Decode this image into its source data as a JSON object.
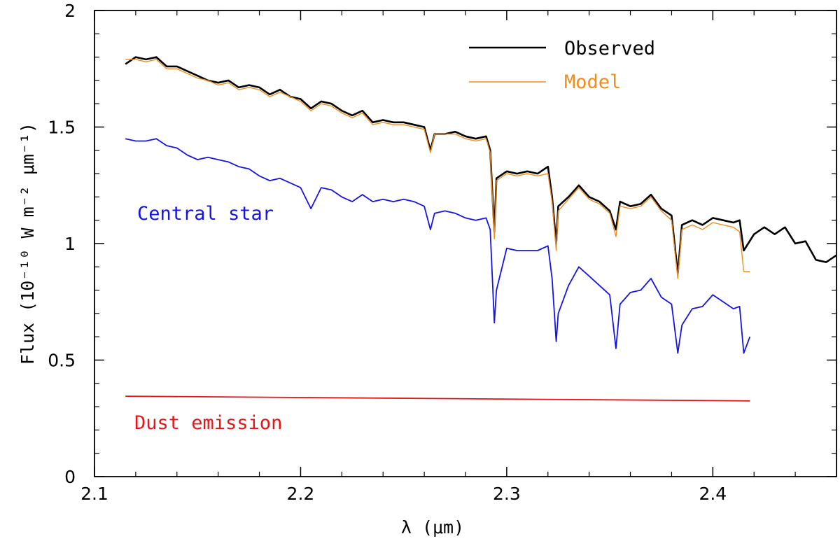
{
  "chart_data": {
    "type": "line",
    "xlabel": "λ (μm)",
    "ylabel": "Flux (10⁻¹⁰ W m⁻² μm⁻¹)",
    "xlim": [
      2.1,
      2.46
    ],
    "ylim": [
      0,
      2
    ],
    "x_ticks": [
      "2.1",
      "2.2",
      "2.3",
      "2.4"
    ],
    "y_ticks": [
      "0",
      "0.5",
      "1",
      "1.5",
      "2"
    ],
    "grid": false,
    "legend_position": "top-right",
    "colors": {
      "observed": "#000000",
      "model": "#f28c1c",
      "central_star": "#1414e6",
      "dust": "#e61414"
    },
    "series": [
      {
        "key": "observed",
        "name": "Observed",
        "x": [
          2.115,
          2.12,
          2.125,
          2.13,
          2.135,
          2.14,
          2.145,
          2.15,
          2.155,
          2.16,
          2.165,
          2.17,
          2.175,
          2.18,
          2.185,
          2.19,
          2.195,
          2.2,
          2.205,
          2.21,
          2.215,
          2.22,
          2.225,
          2.23,
          2.235,
          2.24,
          2.245,
          2.25,
          2.255,
          2.26,
          2.263,
          2.265,
          2.27,
          2.275,
          2.28,
          2.285,
          2.29,
          2.292,
          2.294,
          2.295,
          2.3,
          2.305,
          2.31,
          2.315,
          2.32,
          2.322,
          2.324,
          2.325,
          2.33,
          2.335,
          2.34,
          2.345,
          2.35,
          2.353,
          2.355,
          2.36,
          2.365,
          2.37,
          2.375,
          2.38,
          2.383,
          2.385,
          2.39,
          2.395,
          2.4,
          2.405,
          2.41,
          2.413,
          2.415,
          2.42,
          2.425,
          2.43,
          2.435,
          2.44,
          2.445,
          2.45,
          2.455,
          2.46
        ],
        "y": [
          1.77,
          1.8,
          1.79,
          1.8,
          1.76,
          1.76,
          1.74,
          1.72,
          1.7,
          1.69,
          1.7,
          1.67,
          1.68,
          1.67,
          1.64,
          1.66,
          1.63,
          1.62,
          1.58,
          1.61,
          1.6,
          1.57,
          1.55,
          1.57,
          1.52,
          1.53,
          1.52,
          1.52,
          1.51,
          1.5,
          1.4,
          1.47,
          1.47,
          1.48,
          1.46,
          1.45,
          1.46,
          1.4,
          1.05,
          1.28,
          1.31,
          1.3,
          1.31,
          1.3,
          1.33,
          1.2,
          1.0,
          1.16,
          1.2,
          1.25,
          1.2,
          1.18,
          1.14,
          1.06,
          1.18,
          1.16,
          1.17,
          1.21,
          1.15,
          1.12,
          0.87,
          1.08,
          1.1,
          1.08,
          1.11,
          1.1,
          1.09,
          1.1,
          0.97,
          1.04,
          1.07,
          1.04,
          1.07,
          1.0,
          1.01,
          0.93,
          0.92,
          0.95
        ]
      },
      {
        "key": "model",
        "name": "Model",
        "x": [
          2.115,
          2.12,
          2.125,
          2.13,
          2.135,
          2.14,
          2.145,
          2.15,
          2.155,
          2.16,
          2.165,
          2.17,
          2.175,
          2.18,
          2.185,
          2.19,
          2.195,
          2.2,
          2.205,
          2.21,
          2.215,
          2.22,
          2.225,
          2.23,
          2.235,
          2.24,
          2.245,
          2.25,
          2.255,
          2.26,
          2.263,
          2.265,
          2.27,
          2.275,
          2.28,
          2.285,
          2.29,
          2.292,
          2.294,
          2.295,
          2.3,
          2.305,
          2.31,
          2.315,
          2.32,
          2.322,
          2.324,
          2.325,
          2.33,
          2.335,
          2.34,
          2.345,
          2.35,
          2.353,
          2.355,
          2.36,
          2.365,
          2.37,
          2.375,
          2.38,
          2.383,
          2.385,
          2.39,
          2.395,
          2.4,
          2.405,
          2.41,
          2.413,
          2.415,
          2.418
        ],
        "y": [
          1.79,
          1.79,
          1.78,
          1.79,
          1.75,
          1.75,
          1.73,
          1.71,
          1.7,
          1.68,
          1.69,
          1.66,
          1.67,
          1.66,
          1.63,
          1.65,
          1.63,
          1.61,
          1.57,
          1.6,
          1.59,
          1.56,
          1.54,
          1.56,
          1.51,
          1.52,
          1.51,
          1.51,
          1.5,
          1.49,
          1.39,
          1.47,
          1.47,
          1.47,
          1.45,
          1.44,
          1.45,
          1.39,
          1.02,
          1.27,
          1.3,
          1.29,
          1.3,
          1.29,
          1.3,
          1.18,
          0.97,
          1.14,
          1.19,
          1.24,
          1.19,
          1.17,
          1.13,
          1.03,
          1.16,
          1.15,
          1.16,
          1.2,
          1.14,
          1.1,
          0.85,
          1.06,
          1.08,
          1.06,
          1.09,
          1.08,
          1.07,
          1.05,
          0.88,
          0.88
        ]
      },
      {
        "key": "central_star",
        "name": "Central star",
        "x": [
          2.115,
          2.12,
          2.125,
          2.13,
          2.135,
          2.14,
          2.145,
          2.15,
          2.155,
          2.16,
          2.165,
          2.17,
          2.175,
          2.18,
          2.185,
          2.19,
          2.195,
          2.2,
          2.205,
          2.21,
          2.215,
          2.22,
          2.225,
          2.23,
          2.235,
          2.24,
          2.245,
          2.25,
          2.255,
          2.26,
          2.263,
          2.265,
          2.27,
          2.275,
          2.28,
          2.285,
          2.29,
          2.292,
          2.294,
          2.295,
          2.3,
          2.305,
          2.31,
          2.315,
          2.32,
          2.322,
          2.324,
          2.325,
          2.33,
          2.335,
          2.34,
          2.345,
          2.35,
          2.353,
          2.355,
          2.36,
          2.365,
          2.37,
          2.375,
          2.38,
          2.383,
          2.385,
          2.39,
          2.395,
          2.4,
          2.405,
          2.41,
          2.413,
          2.415,
          2.418
        ],
        "y": [
          1.45,
          1.44,
          1.44,
          1.45,
          1.42,
          1.41,
          1.38,
          1.36,
          1.37,
          1.36,
          1.35,
          1.33,
          1.32,
          1.29,
          1.27,
          1.28,
          1.26,
          1.24,
          1.15,
          1.24,
          1.23,
          1.2,
          1.18,
          1.21,
          1.18,
          1.19,
          1.18,
          1.19,
          1.18,
          1.16,
          1.06,
          1.13,
          1.14,
          1.13,
          1.11,
          1.1,
          1.11,
          1.06,
          0.66,
          0.8,
          0.98,
          0.97,
          0.97,
          0.97,
          0.99,
          0.85,
          0.58,
          0.7,
          0.82,
          0.9,
          0.86,
          0.82,
          0.78,
          0.55,
          0.74,
          0.79,
          0.8,
          0.85,
          0.77,
          0.74,
          0.53,
          0.65,
          0.72,
          0.73,
          0.78,
          0.75,
          0.72,
          0.73,
          0.53,
          0.6
        ]
      },
      {
        "key": "dust",
        "name": "Dust emission",
        "x": [
          2.115,
          2.418
        ],
        "y": [
          0.345,
          0.325
        ]
      }
    ],
    "legend": [
      {
        "series": "observed",
        "label": "Observed"
      },
      {
        "series": "model",
        "label": "Model"
      }
    ],
    "annotations": [
      {
        "series": "central_star",
        "label": "Central star"
      },
      {
        "series": "dust",
        "label": "Dust emission"
      }
    ]
  }
}
